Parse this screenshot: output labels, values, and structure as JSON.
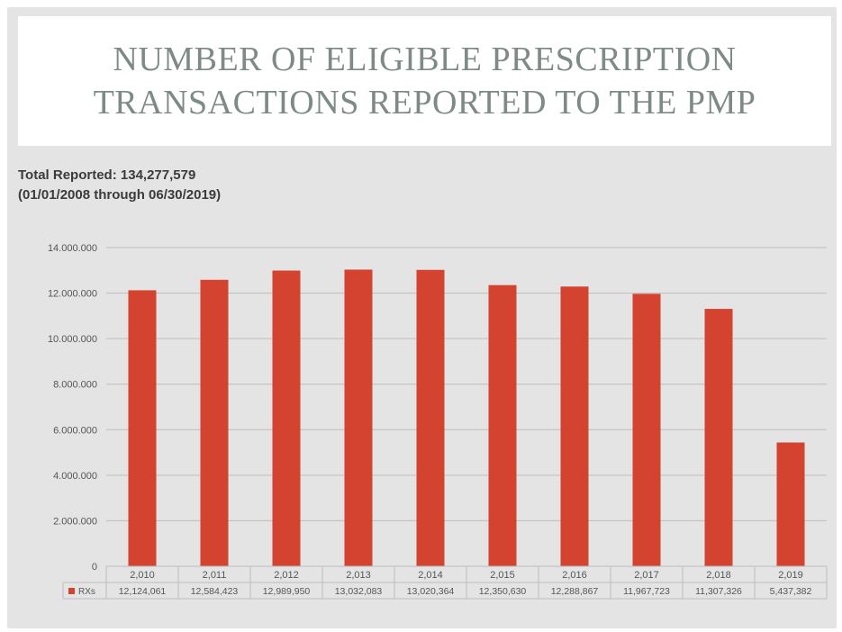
{
  "title": {
    "line1": "NUMBER OF ELIGIBLE PRESCRIPTION",
    "line2": "TRANSACTIONS REPORTED TO THE PMP"
  },
  "summary": {
    "total": "Total Reported: 134,277,579",
    "period": "(01/01/2008 through 06/30/2019)"
  },
  "colors": {
    "bar": "#d4432f",
    "grid": "#bdbdbd",
    "text": "#555555"
  },
  "chart_data": {
    "type": "bar",
    "categories": [
      "2,010",
      "2,011",
      "2,012",
      "2,013",
      "2,014",
      "2,015",
      "2,016",
      "2,017",
      "2,018",
      "2,019"
    ],
    "series": [
      {
        "name": "RXs",
        "values": [
          12124061,
          12584423,
          12989950,
          13032083,
          13020364,
          12350630,
          12288867,
          11967723,
          11307326,
          5437382
        ],
        "labels": [
          "12,124,061",
          "12,584,423",
          "12,989,950",
          "13,032,083",
          "13,020,364",
          "12,350,630",
          "12,288,867",
          "11,967,723",
          "11,307,326",
          "5,437,382"
        ]
      }
    ],
    "y_ticks": [
      0,
      2000000,
      4000000,
      6000000,
      8000000,
      10000000,
      12000000,
      14000000
    ],
    "y_tick_labels": [
      "0",
      "2.000.000",
      "4.000.000",
      "6.000.000",
      "8.000.000",
      "10.000.000",
      "12.000.000",
      "14.000.000"
    ],
    "ylim": [
      0,
      14000000
    ],
    "grid": true,
    "legend": "data-table",
    "title": "",
    "xlabel": "",
    "ylabel": ""
  }
}
